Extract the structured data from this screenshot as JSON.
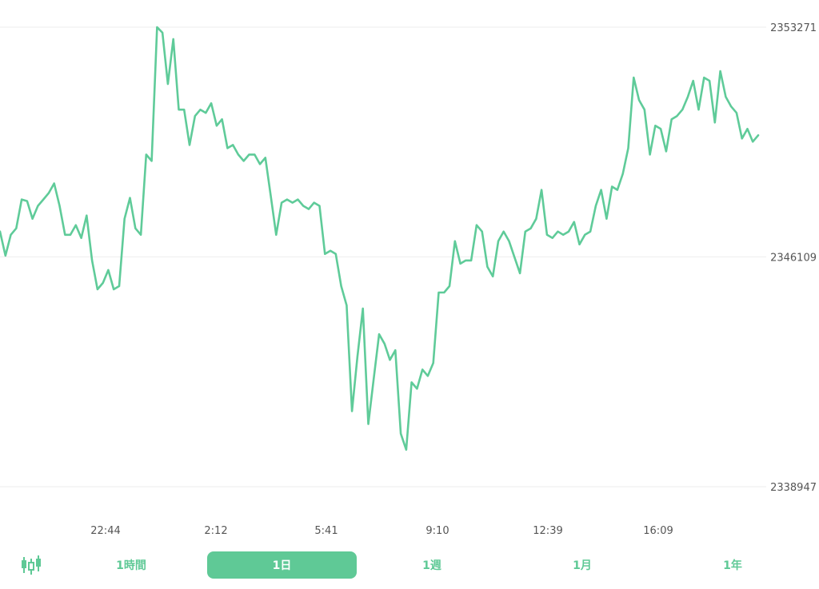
{
  "chart_data": {
    "type": "line",
    "title": "",
    "xlabel": "",
    "ylabel": "",
    "line_color": "#5fcb99",
    "grid": true,
    "y_axis_position": "right",
    "ylim": [
      2338947,
      2353271
    ],
    "y_ticks": [
      "2353271",
      "2346109",
      "2338947"
    ],
    "x_ticks": [
      "22:44",
      "2:12",
      "5:41",
      "9:10",
      "12:39",
      "16:09"
    ],
    "series": [
      {
        "values": [
          2346900,
          2346150,
          2346800,
          2347000,
          2347900,
          2347850,
          2347300,
          2347700,
          2347900,
          2348100,
          2348400,
          2347700,
          2346800,
          2346800,
          2347100,
          2346700,
          2347400,
          2346000,
          2345100,
          2345300,
          2345700,
          2345100,
          2345200,
          2347300,
          2347950,
          2347000,
          2346800,
          2349300,
          2349100,
          2353271,
          2353100,
          2351500,
          2352900,
          2350700,
          2350700,
          2349600,
          2350500,
          2350700,
          2350600,
          2350900,
          2350200,
          2350400,
          2349500,
          2349600,
          2349300,
          2349100,
          2349300,
          2349300,
          2349000,
          2349200,
          2348000,
          2346800,
          2347800,
          2347900,
          2347800,
          2347900,
          2347700,
          2347600,
          2347800,
          2347700,
          2346200,
          2346300,
          2346200,
          2345200,
          2344600,
          2341300,
          2343000,
          2344500,
          2340900,
          2342300,
          2343700,
          2343400,
          2342900,
          2343200,
          2340600,
          2340100,
          2342200,
          2342000,
          2342600,
          2342400,
          2342800,
          2345000,
          2345000,
          2345200,
          2346600,
          2345900,
          2346000,
          2346000,
          2347100,
          2346900,
          2345800,
          2345500,
          2346600,
          2346900,
          2346600,
          2346100,
          2345600,
          2346900,
          2347000,
          2347300,
          2348200,
          2346800,
          2346700,
          2346900,
          2346800,
          2346900,
          2347200,
          2346500,
          2346800,
          2346900,
          2347700,
          2348200,
          2347300,
          2348300,
          2348200,
          2348700,
          2349500,
          2351700,
          2351000,
          2350700,
          2349300,
          2350200,
          2350100,
          2349400,
          2350400,
          2350500,
          2350700,
          2351100,
          2351600,
          2350700,
          2351700,
          2351600,
          2350300,
          2351900,
          2351100,
          2350800,
          2350600,
          2349800,
          2350100,
          2349700,
          2349900
        ]
      }
    ]
  },
  "toolbar": {
    "candle_icon": "candlestick-chart-icon",
    "ranges": [
      {
        "label": "1時間",
        "active": false
      },
      {
        "label": "1日",
        "active": true
      },
      {
        "label": "1週",
        "active": false
      },
      {
        "label": "1月",
        "active": false
      },
      {
        "label": "1年",
        "active": false
      }
    ],
    "accent_color": "#5fc996"
  }
}
